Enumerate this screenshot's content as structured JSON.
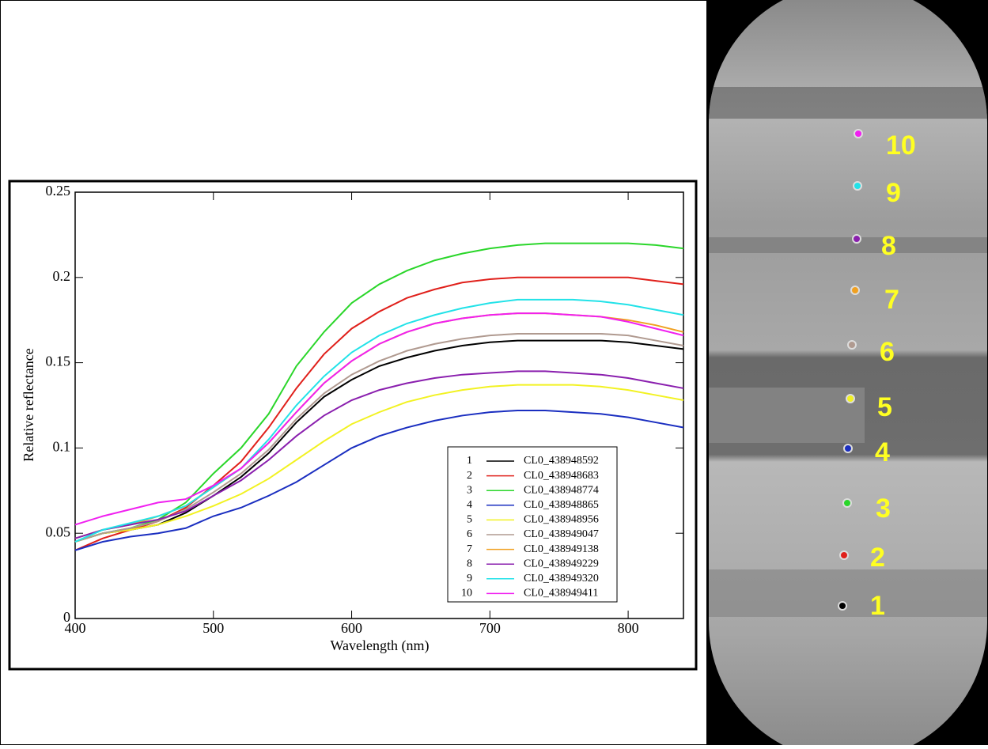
{
  "chart_data": {
    "type": "line",
    "xlabel": "Wavelength (nm)",
    "ylabel": "Relative reflectance",
    "xlim": [
      400,
      840
    ],
    "xticks": [
      400,
      500,
      600,
      700,
      800
    ],
    "ylim": [
      0,
      0.25
    ],
    "yticks": [
      0,
      0.05,
      0.1,
      0.15,
      0.2,
      0.25
    ],
    "x": [
      400,
      420,
      440,
      460,
      480,
      500,
      520,
      540,
      560,
      580,
      600,
      620,
      640,
      660,
      680,
      700,
      720,
      740,
      760,
      780,
      800,
      820,
      840
    ],
    "series": [
      {
        "id": "1",
        "name": "CL0_438948592",
        "color": "#000000",
        "values": [
          0.045,
          0.05,
          0.052,
          0.055,
          0.062,
          0.072,
          0.083,
          0.097,
          0.115,
          0.13,
          0.14,
          0.148,
          0.153,
          0.157,
          0.16,
          0.162,
          0.163,
          0.163,
          0.163,
          0.163,
          0.162,
          0.16,
          0.158
        ]
      },
      {
        "id": "2",
        "name": "CL0_438948683",
        "color": "#e0201b",
        "values": [
          0.04,
          0.047,
          0.052,
          0.057,
          0.065,
          0.078,
          0.092,
          0.112,
          0.135,
          0.155,
          0.17,
          0.18,
          0.188,
          0.193,
          0.197,
          0.199,
          0.2,
          0.2,
          0.2,
          0.2,
          0.2,
          0.198,
          0.196
        ]
      },
      {
        "id": "3",
        "name": "CL0_438948774",
        "color": "#2ad62a",
        "values": [
          0.045,
          0.05,
          0.053,
          0.058,
          0.068,
          0.085,
          0.1,
          0.12,
          0.148,
          0.168,
          0.185,
          0.196,
          0.204,
          0.21,
          0.214,
          0.217,
          0.219,
          0.22,
          0.22,
          0.22,
          0.22,
          0.219,
          0.217
        ]
      },
      {
        "id": "4",
        "name": "CL0_438948865",
        "color": "#1a2ec0",
        "values": [
          0.04,
          0.045,
          0.048,
          0.05,
          0.053,
          0.06,
          0.065,
          0.072,
          0.08,
          0.09,
          0.1,
          0.107,
          0.112,
          0.116,
          0.119,
          0.121,
          0.122,
          0.122,
          0.121,
          0.12,
          0.118,
          0.115,
          0.112
        ]
      },
      {
        "id": "5",
        "name": "CL0_438948956",
        "color": "#f2f222",
        "values": [
          0.045,
          0.05,
          0.052,
          0.055,
          0.06,
          0.066,
          0.073,
          0.082,
          0.093,
          0.104,
          0.114,
          0.121,
          0.127,
          0.131,
          0.134,
          0.136,
          0.137,
          0.137,
          0.137,
          0.136,
          0.134,
          0.131,
          0.128
        ]
      },
      {
        "id": "6",
        "name": "CL0_438949047",
        "color": "#b09a90",
        "values": [
          0.045,
          0.05,
          0.053,
          0.057,
          0.064,
          0.074,
          0.085,
          0.099,
          0.117,
          0.132,
          0.143,
          0.151,
          0.157,
          0.161,
          0.164,
          0.166,
          0.167,
          0.167,
          0.167,
          0.167,
          0.166,
          0.163,
          0.16
        ]
      },
      {
        "id": "7",
        "name": "CL0_438949138",
        "color": "#f0a020",
        "values": [
          0.047,
          0.052,
          0.055,
          0.06,
          0.066,
          0.077,
          0.088,
          0.103,
          0.121,
          0.138,
          0.151,
          0.161,
          0.168,
          0.173,
          0.176,
          0.178,
          0.179,
          0.179,
          0.178,
          0.177,
          0.175,
          0.172,
          0.168
        ]
      },
      {
        "id": "8",
        "name": "CL0_438949229",
        "color": "#8a1fae",
        "values": [
          0.047,
          0.052,
          0.055,
          0.058,
          0.063,
          0.072,
          0.081,
          0.093,
          0.107,
          0.119,
          0.128,
          0.134,
          0.138,
          0.141,
          0.143,
          0.144,
          0.145,
          0.145,
          0.144,
          0.143,
          0.141,
          0.138,
          0.135
        ]
      },
      {
        "id": "9",
        "name": "CL0_438949320",
        "color": "#22e2e8",
        "values": [
          0.045,
          0.052,
          0.056,
          0.06,
          0.066,
          0.077,
          0.088,
          0.105,
          0.125,
          0.142,
          0.156,
          0.166,
          0.173,
          0.178,
          0.182,
          0.185,
          0.187,
          0.187,
          0.187,
          0.186,
          0.184,
          0.181,
          0.178
        ]
      },
      {
        "id": "10",
        "name": "CL0_438949411",
        "color": "#f020f0",
        "values": [
          0.055,
          0.06,
          0.064,
          0.068,
          0.07,
          0.078,
          0.088,
          0.103,
          0.121,
          0.138,
          0.151,
          0.161,
          0.168,
          0.173,
          0.176,
          0.178,
          0.179,
          0.179,
          0.178,
          0.177,
          0.174,
          0.17,
          0.166
        ]
      }
    ]
  }
}
